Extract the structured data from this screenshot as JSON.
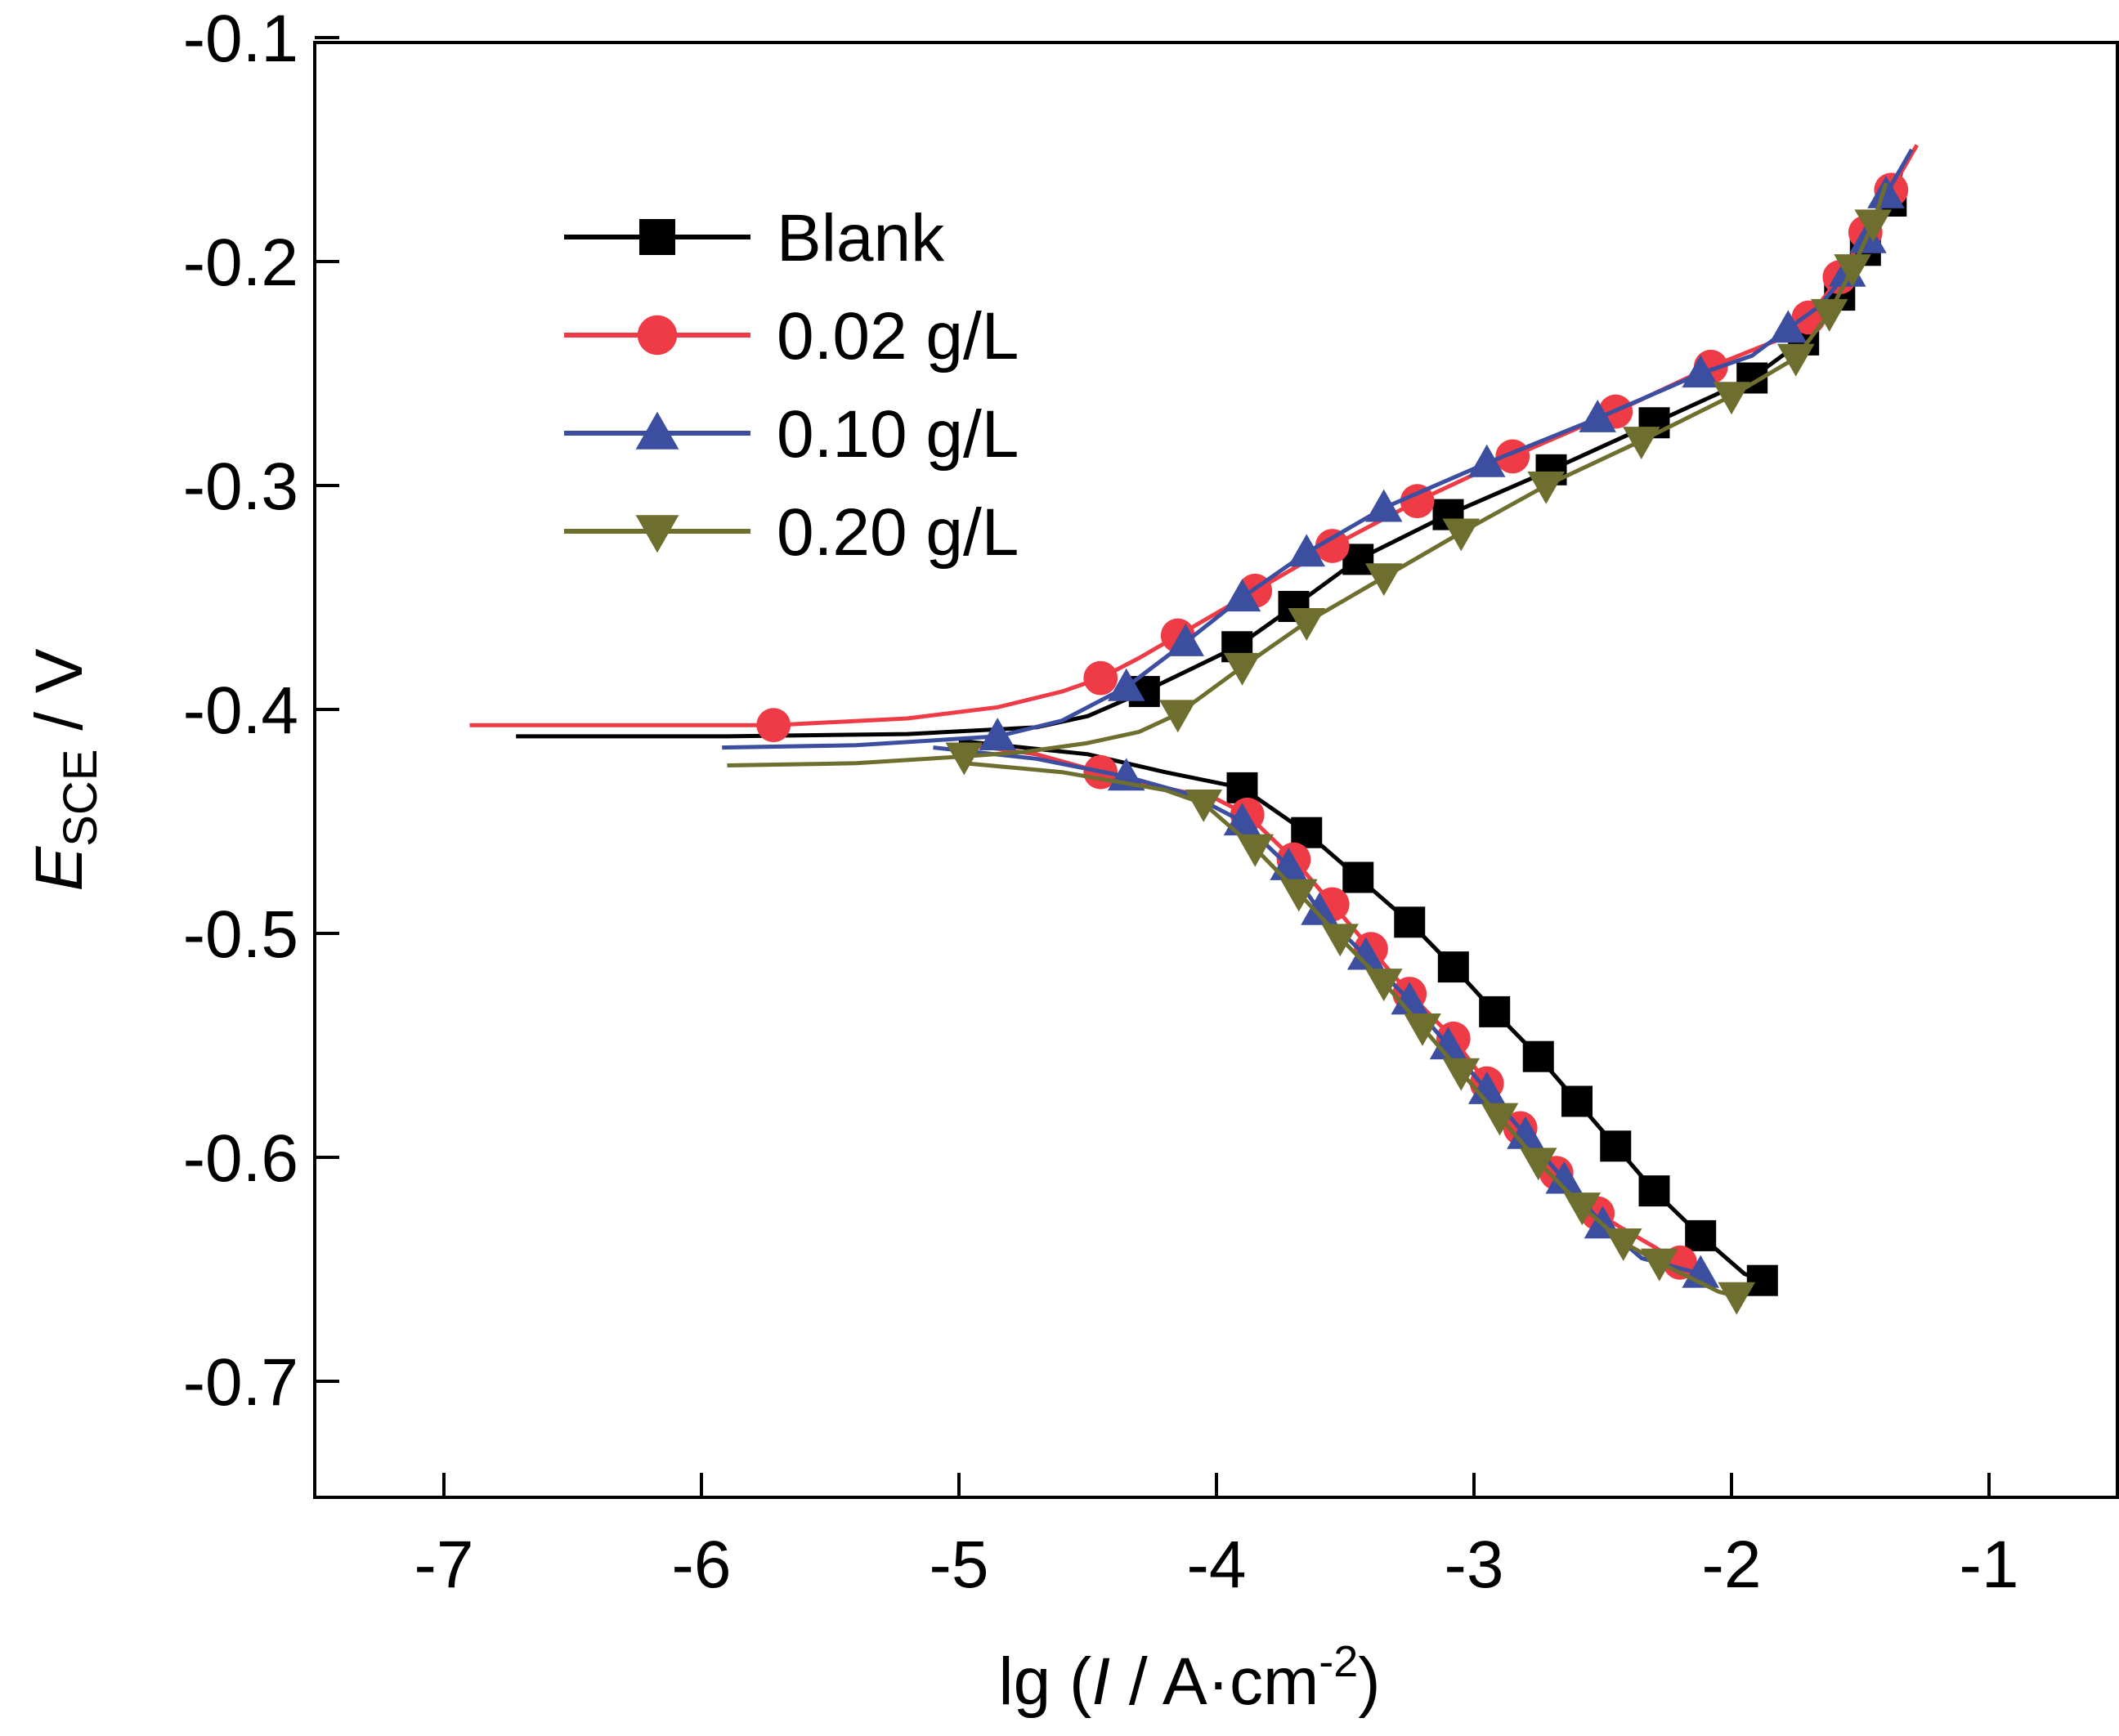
{
  "chart_data": {
    "type": "line",
    "title": "",
    "xlabel": {
      "prefix": "lg (",
      "var": "I",
      "unit": " / A·cm",
      "sup": "-2",
      "suffix": ")"
    },
    "ylabel": {
      "var": "E",
      "sub": "SCE",
      "unit": " / V"
    },
    "xlim": [
      -7.5,
      -0.5
    ],
    "ylim": [
      -0.75,
      -0.1
    ],
    "xticks": [
      -7,
      -6,
      -5,
      -4,
      -3,
      -2,
      -1
    ],
    "xtick_labels": [
      "-7",
      "-6",
      "-5",
      "-4",
      "-3",
      "-2",
      "-1"
    ],
    "yticks": [
      -0.1,
      -0.2,
      -0.3,
      -0.4,
      -0.5,
      -0.6,
      -0.7
    ],
    "ytick_labels": [
      "-0.1",
      "-0.2",
      "-0.3",
      "-0.4",
      "-0.5",
      "-0.6",
      "-0.7"
    ],
    "grid": false,
    "legend_position": "top-left",
    "series": [
      {
        "name": "Blank",
        "color": "#000000",
        "marker": "square",
        "anodic": [
          [
            -6.72,
            -0.412
          ],
          [
            -5.9,
            -0.412
          ],
          [
            -5.2,
            -0.411
          ],
          [
            -4.7,
            -0.408
          ],
          [
            -4.5,
            -0.403
          ],
          [
            -4.28,
            -0.392
          ],
          [
            -4.1,
            -0.382
          ],
          [
            -3.92,
            -0.372
          ],
          [
            -3.7,
            -0.354
          ],
          [
            -3.45,
            -0.333
          ],
          [
            -3.1,
            -0.313
          ],
          [
            -2.7,
            -0.293
          ],
          [
            -2.3,
            -0.272
          ],
          [
            -1.92,
            -0.252
          ],
          [
            -1.72,
            -0.235
          ],
          [
            -1.58,
            -0.215
          ],
          [
            -1.48,
            -0.195
          ],
          [
            -1.38,
            -0.173
          ],
          [
            -1.34,
            -0.16
          ]
        ],
        "cathodic": [
          [
            -5.0,
            -0.414
          ],
          [
            -4.5,
            -0.42
          ],
          [
            -4.2,
            -0.428
          ],
          [
            -3.9,
            -0.435
          ],
          [
            -3.8,
            -0.443
          ],
          [
            -3.65,
            -0.455
          ],
          [
            -3.45,
            -0.475
          ],
          [
            -3.25,
            -0.495
          ],
          [
            -3.08,
            -0.515
          ],
          [
            -2.92,
            -0.535
          ],
          [
            -2.75,
            -0.555
          ],
          [
            -2.6,
            -0.575
          ],
          [
            -2.45,
            -0.595
          ],
          [
            -2.3,
            -0.615
          ],
          [
            -2.12,
            -0.635
          ],
          [
            -1.95,
            -0.652
          ],
          [
            -1.88,
            -0.655
          ]
        ],
        "anodic_marker_x": [
          -4.28,
          -3.92,
          -3.7,
          -3.45,
          -3.1,
          -2.7,
          -2.3,
          -1.92,
          -1.72,
          -1.58,
          -1.48,
          -1.38
        ],
        "cathodic_marker_x": [
          -3.9,
          -3.65,
          -3.45,
          -3.25,
          -3.08,
          -2.92,
          -2.75,
          -2.6,
          -2.45,
          -2.3,
          -2.12,
          -1.88
        ]
      },
      {
        "name": "0.02 g/L",
        "color": "#ee3b46",
        "marker": "circle",
        "anodic": [
          [
            -6.9,
            -0.407
          ],
          [
            -5.72,
            -0.407
          ],
          [
            -5.2,
            -0.404
          ],
          [
            -4.85,
            -0.399
          ],
          [
            -4.6,
            -0.392
          ],
          [
            -4.45,
            -0.386
          ],
          [
            -4.3,
            -0.377
          ],
          [
            -4.15,
            -0.367
          ],
          [
            -3.85,
            -0.347
          ],
          [
            -3.55,
            -0.327
          ],
          [
            -3.22,
            -0.307
          ],
          [
            -2.85,
            -0.287
          ],
          [
            -2.45,
            -0.267
          ],
          [
            -2.08,
            -0.247
          ],
          [
            -1.82,
            -0.235
          ],
          [
            -1.7,
            -0.225
          ],
          [
            -1.58,
            -0.207
          ],
          [
            -1.48,
            -0.187
          ],
          [
            -1.38,
            -0.168
          ],
          [
            -1.28,
            -0.148
          ]
        ],
        "cathodic": [
          [
            -4.95,
            -0.416
          ],
          [
            -4.7,
            -0.42
          ],
          [
            -4.45,
            -0.428
          ],
          [
            -4.2,
            -0.435
          ],
          [
            -4.0,
            -0.44
          ],
          [
            -3.88,
            -0.447
          ],
          [
            -3.7,
            -0.467
          ],
          [
            -3.55,
            -0.487
          ],
          [
            -3.4,
            -0.507
          ],
          [
            -3.25,
            -0.527
          ],
          [
            -3.08,
            -0.547
          ],
          [
            -2.95,
            -0.567
          ],
          [
            -2.82,
            -0.587
          ],
          [
            -2.68,
            -0.607
          ],
          [
            -2.52,
            -0.625
          ],
          [
            -2.42,
            -0.632
          ],
          [
            -2.3,
            -0.64
          ],
          [
            -2.2,
            -0.647
          ],
          [
            -2.1,
            -0.652
          ]
        ],
        "anodic_marker_x": [
          -5.72,
          -4.45,
          -4.15,
          -3.85,
          -3.55,
          -3.22,
          -2.85,
          -2.45,
          -2.08,
          -1.7,
          -1.58,
          -1.48,
          -1.38
        ],
        "cathodic_marker_x": [
          -4.45,
          -3.88,
          -3.7,
          -3.55,
          -3.4,
          -3.25,
          -3.08,
          -2.95,
          -2.82,
          -2.68,
          -2.52,
          -2.2
        ]
      },
      {
        "name": "0.10 g/L",
        "color": "#3b4ea0",
        "marker": "triangle-up",
        "anodic": [
          [
            -5.92,
            -0.417
          ],
          [
            -5.4,
            -0.416
          ],
          [
            -4.85,
            -0.412
          ],
          [
            -4.6,
            -0.405
          ],
          [
            -4.35,
            -0.39
          ],
          [
            -4.12,
            -0.37
          ],
          [
            -3.9,
            -0.35
          ],
          [
            -3.65,
            -0.33
          ],
          [
            -3.35,
            -0.31
          ],
          [
            -2.95,
            -0.29
          ],
          [
            -2.52,
            -0.27
          ],
          [
            -2.12,
            -0.25
          ],
          [
            -1.92,
            -0.242
          ],
          [
            -1.78,
            -0.23
          ],
          [
            -1.66,
            -0.22
          ],
          [
            -1.55,
            -0.205
          ],
          [
            -1.47,
            -0.19
          ],
          [
            -1.4,
            -0.17
          ],
          [
            -1.3,
            -0.15
          ]
        ],
        "cathodic": [
          [
            -5.1,
            -0.417
          ],
          [
            -4.7,
            -0.422
          ],
          [
            -4.35,
            -0.43
          ],
          [
            -4.1,
            -0.438
          ],
          [
            -3.9,
            -0.45
          ],
          [
            -3.72,
            -0.47
          ],
          [
            -3.6,
            -0.49
          ],
          [
            -3.42,
            -0.51
          ],
          [
            -3.25,
            -0.53
          ],
          [
            -3.1,
            -0.55
          ],
          [
            -2.95,
            -0.57
          ],
          [
            -2.8,
            -0.59
          ],
          [
            -2.65,
            -0.61
          ],
          [
            -2.5,
            -0.63
          ],
          [
            -2.35,
            -0.645
          ],
          [
            -2.12,
            -0.652
          ]
        ],
        "anodic_marker_x": [
          -4.85,
          -4.35,
          -4.12,
          -3.9,
          -3.65,
          -3.35,
          -2.95,
          -2.52,
          -2.12,
          -1.78,
          -1.55,
          -1.47,
          -1.4
        ],
        "cathodic_marker_x": [
          -4.35,
          -3.9,
          -3.72,
          -3.6,
          -3.42,
          -3.25,
          -3.1,
          -2.95,
          -2.8,
          -2.65,
          -2.5,
          -2.12
        ]
      },
      {
        "name": "0.20 g/L",
        "color": "#6e6e2e",
        "marker": "triangle-down",
        "anodic": [
          [
            -5.9,
            -0.425
          ],
          [
            -5.4,
            -0.424
          ],
          [
            -4.98,
            -0.421
          ],
          [
            -4.75,
            -0.419
          ],
          [
            -4.5,
            -0.415
          ],
          [
            -4.3,
            -0.41
          ],
          [
            -4.15,
            -0.402
          ],
          [
            -3.9,
            -0.381
          ],
          [
            -3.65,
            -0.361
          ],
          [
            -3.35,
            -0.341
          ],
          [
            -3.05,
            -0.321
          ],
          [
            -2.72,
            -0.3
          ],
          [
            -2.35,
            -0.28
          ],
          [
            -2.0,
            -0.26
          ],
          [
            -1.75,
            -0.243
          ],
          [
            -1.62,
            -0.223
          ],
          [
            -1.53,
            -0.203
          ],
          [
            -1.45,
            -0.183
          ],
          [
            -1.4,
            -0.165
          ]
        ],
        "cathodic": [
          [
            -4.98,
            -0.424
          ],
          [
            -4.6,
            -0.428
          ],
          [
            -4.2,
            -0.436
          ],
          [
            -4.05,
            -0.442
          ],
          [
            -3.85,
            -0.462
          ],
          [
            -3.68,
            -0.482
          ],
          [
            -3.52,
            -0.502
          ],
          [
            -3.35,
            -0.522
          ],
          [
            -3.2,
            -0.542
          ],
          [
            -3.05,
            -0.562
          ],
          [
            -2.9,
            -0.582
          ],
          [
            -2.75,
            -0.602
          ],
          [
            -2.58,
            -0.622
          ],
          [
            -2.42,
            -0.638
          ],
          [
            -2.28,
            -0.647
          ],
          [
            -2.05,
            -0.66
          ],
          [
            -1.98,
            -0.662
          ]
        ],
        "anodic_marker_x": [
          -4.98,
          -4.15,
          -3.9,
          -3.65,
          -3.35,
          -3.05,
          -2.72,
          -2.35,
          -2.0,
          -1.75,
          -1.62,
          -1.53,
          -1.45
        ],
        "cathodic_marker_x": [
          -4.05,
          -3.85,
          -3.68,
          -3.52,
          -3.35,
          -3.2,
          -3.05,
          -2.9,
          -2.75,
          -2.58,
          -2.42,
          -2.28,
          -1.98
        ]
      }
    ]
  }
}
